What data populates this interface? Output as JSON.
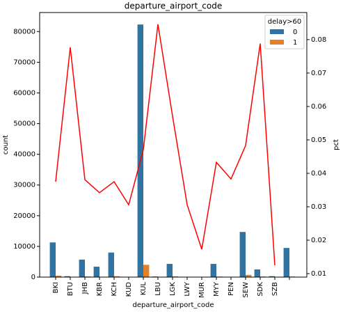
{
  "chart_data": {
    "type": "bar",
    "title": "departure_airport_code",
    "xlabel": "departure_airport_code",
    "ylabel": "count",
    "y2label": "pct",
    "legend_title": "delay>60",
    "legend": "upper right",
    "categories": [
      "BKI",
      "BTU",
      "JHB",
      "KBR",
      "KCH",
      "KUD",
      "KUL",
      "LBU",
      "LGK",
      "LWY",
      "MUR",
      "MYY",
      "PEN",
      "SEW",
      "SDK",
      "SZB",
      null
    ],
    "series": [
      {
        "name": "0",
        "color": "#3274a1",
        "values": [
          11300,
          300,
          5700,
          3400,
          8000,
          0,
          82300,
          200,
          4300,
          0,
          0,
          4300,
          0,
          14700,
          2500,
          300,
          9500
        ]
      },
      {
        "name": "1",
        "color": "#e1812c",
        "values": [
          450,
          20,
          220,
          120,
          300,
          0,
          4000,
          20,
          230,
          0,
          0,
          190,
          0,
          720,
          200,
          5,
          200
        ]
      },
      {
        "name": "pct",
        "type": "line",
        "axis": "y2",
        "color": "#ff0000",
        "values": [
          0.0375,
          0.0777,
          0.0381,
          0.0342,
          0.0375,
          0.0306,
          0.0471,
          0.0846,
          0.0571,
          0.0306,
          0.0173,
          0.0433,
          0.0383,
          0.0483,
          0.0788,
          0.0125,
          null
        ]
      }
    ],
    "ylim": [
      0,
      86200
    ],
    "yticks": [
      0,
      10000,
      20000,
      30000,
      40000,
      50000,
      60000,
      70000,
      80000
    ],
    "y2lim": [
      0.00896,
      0.0881
    ],
    "y2ticks": [
      0.01,
      0.02,
      0.03,
      0.04,
      0.05,
      0.06,
      0.07,
      0.08
    ]
  }
}
